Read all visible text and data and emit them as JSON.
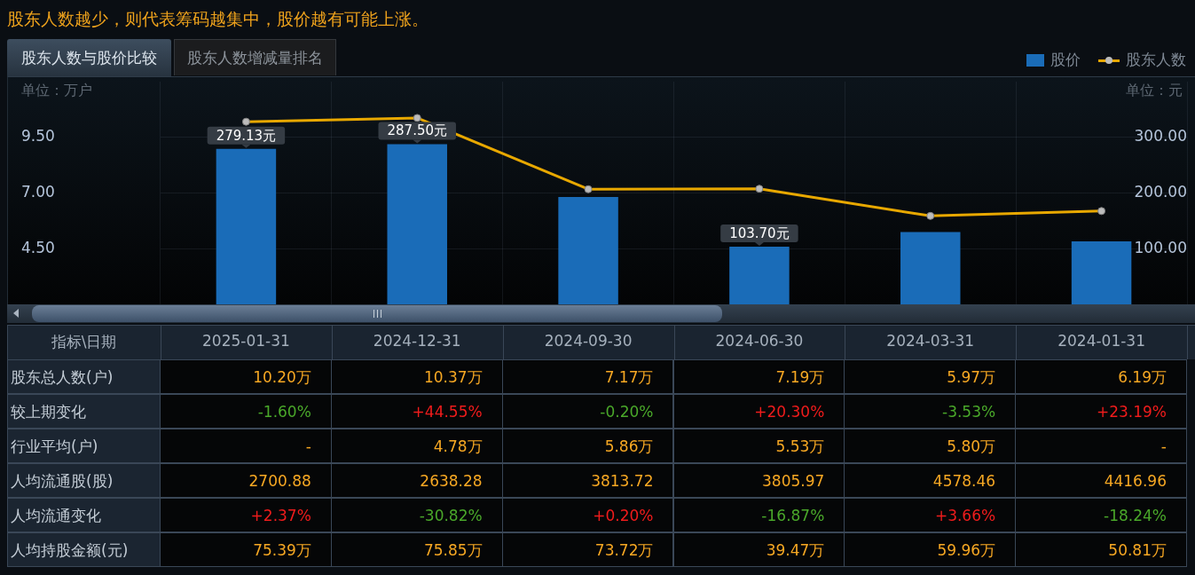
{
  "chart_data": [
    {
      "type": "bar",
      "title": "股东人数与股价比较",
      "xlabel": "指标\\日期",
      "ylabel": "单位：万户",
      "y2label": "单位：元",
      "annotations": [
        "股东人数越少，则代表筹码越集中，股价越有可能上涨。",
        "股东人数增减量排名"
      ],
      "categories": [
        "2025-01-31",
        "2024-12-31",
        "2024-09-30",
        "2024-06-30",
        "2024-03-31",
        "2024-01-31"
      ],
      "series": [
        {
          "name": "股价",
          "type": "bar",
          "axis": "y2",
          "color": "#1a6cb8",
          "values": [
            279.13,
            287.5,
            193,
            103.7,
            130,
            113
          ],
          "value_labels": [
            "279.13元",
            "287.50元",
            null,
            "103.70元",
            null,
            null
          ]
        },
        {
          "name": "股东人数",
          "type": "line",
          "color": "#e8a800",
          "values": [
            10.2,
            10.37,
            7.17,
            7.19,
            5.97,
            6.19
          ]
        }
      ],
      "ylim": [
        2,
        12
      ],
      "yticks": [
        {
          "value": 4.5,
          "label": "4.50"
        },
        {
          "value": 7,
          "label": "7.00"
        },
        {
          "value": 9.5,
          "label": "9.50"
        }
      ],
      "y2lim": [
        0,
        400
      ],
      "y2ticks": [
        {
          "value": 100,
          "label": "100.00"
        },
        {
          "value": 200,
          "label": "200.00"
        },
        {
          "value": 300,
          "label": "300.00"
        }
      ],
      "grid": true,
      "legend": "top right",
      "marker": "circle"
    },
    {
      "type": "other",
      "annotations": [
        "股东总人数(户)",
        "10.20万",
        "10.37万",
        "7.17万",
        "7.19万",
        "5.97万",
        "6.19万",
        "较上期变化",
        "-1.60%",
        "+44.55%",
        "-0.20%",
        "+20.30%",
        "-3.53%",
        "+23.19%",
        "行业平均(户)",
        "-",
        "4.78万",
        "5.86万",
        "5.53万",
        "5.80万",
        "-",
        "人均流通股(股)",
        "2700.88",
        "2638.28",
        "3813.72",
        "3805.97",
        "4578.46",
        "4416.96",
        "人均流通变化",
        "+2.37%",
        "-30.82%",
        "+0.20%",
        "-16.87%",
        "+3.66%",
        "-18.24%",
        "人均持股金额(元)",
        "75.39万",
        "75.85万",
        "73.72万",
        "39.47万",
        "59.96万",
        "50.81万"
      ]
    }
  ]
}
